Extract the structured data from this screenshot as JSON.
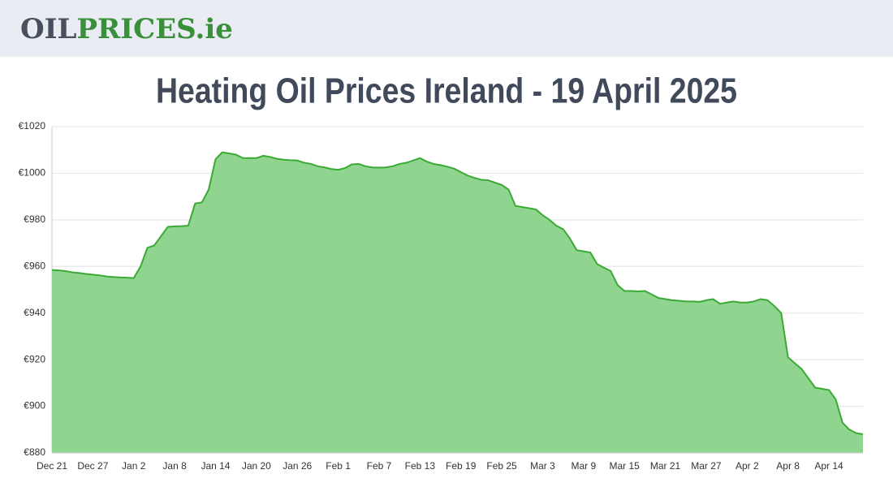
{
  "header": {
    "logo_part1": "OIL",
    "logo_part2": "PRICES.ie"
  },
  "chart_data": {
    "type": "area",
    "title": "Heating Oil Prices Ireland - 19 April 2025",
    "categories": [
      "Dec 21",
      null,
      null,
      null,
      null,
      null,
      "Dec 27",
      null,
      null,
      null,
      null,
      null,
      "Jan 2",
      null,
      null,
      null,
      null,
      null,
      "Jan 8",
      null,
      null,
      null,
      null,
      null,
      "Jan 14",
      null,
      null,
      null,
      null,
      null,
      "Jan 20",
      null,
      null,
      null,
      null,
      null,
      "Jan 26",
      null,
      null,
      null,
      null,
      null,
      "Feb 1",
      null,
      null,
      null,
      null,
      null,
      "Feb 7",
      null,
      null,
      null,
      null,
      null,
      "Feb 13",
      null,
      null,
      null,
      null,
      null,
      "Feb 19",
      null,
      null,
      null,
      null,
      null,
      "Feb 25",
      null,
      null,
      null,
      null,
      null,
      "Mar 3",
      null,
      null,
      null,
      null,
      null,
      "Mar 9",
      null,
      null,
      null,
      null,
      null,
      "Mar 15",
      null,
      null,
      null,
      null,
      null,
      "Mar 21",
      null,
      null,
      null,
      null,
      null,
      "Mar 27",
      null,
      null,
      null,
      null,
      null,
      "Apr 2",
      null,
      null,
      null,
      null,
      null,
      "Apr 8",
      null,
      null,
      null,
      null,
      null,
      "Apr 14",
      null,
      null,
      null,
      null,
      null
    ],
    "values": [
      958.5,
      958.3,
      958,
      957.5,
      957.2,
      956.8,
      956.5,
      956.2,
      955.7,
      955.5,
      955.3,
      955.2,
      955,
      960,
      968,
      969,
      973,
      977,
      977.2,
      977.3,
      977.5,
      987,
      987.5,
      993,
      1006,
      1009,
      1008.5,
      1008,
      1006.5,
      1006.5,
      1006.5,
      1007.5,
      1007,
      1006.2,
      1005.8,
      1005.6,
      1005.5,
      1004.5,
      1004,
      1003,
      1002.5,
      1001.8,
      1001.5,
      1002.2,
      1003.8,
      1004,
      1003,
      1002.5,
      1002.4,
      1002.5,
      1003,
      1004,
      1004.5,
      1005.5,
      1006.5,
      1005,
      1004,
      1003.5,
      1002.8,
      1002,
      1000.5,
      999,
      998,
      997.2,
      997,
      996,
      995,
      993,
      986,
      985.5,
      985,
      984.5,
      982,
      980,
      977.5,
      976,
      972,
      967,
      966.5,
      966,
      961,
      959.5,
      958,
      952,
      949.5,
      949.5,
      949.3,
      949.5,
      948,
      946.5,
      946,
      945.5,
      945.3,
      945,
      945,
      944.8,
      945.5,
      946,
      944,
      944.5,
      945,
      944.5,
      944.5,
      945,
      946,
      945.5,
      943,
      940,
      921,
      918.5,
      916,
      912,
      908,
      907.5,
      907,
      903,
      893,
      890,
      888.5,
      888
    ],
    "color": "#3aaa35",
    "fill_color": "#8fd58f",
    "ylim": [
      880,
      1020
    ],
    "yticks": [
      {
        "value": 880,
        "label": "€880"
      },
      {
        "value": 900,
        "label": "€900"
      },
      {
        "value": 920,
        "label": "€920"
      },
      {
        "value": 940,
        "label": "€940"
      },
      {
        "value": 960,
        "label": "€960"
      },
      {
        "value": 980,
        "label": "€980"
      },
      {
        "value": 1000,
        "label": "€1000"
      },
      {
        "value": 1020,
        "label": "€1020"
      }
    ],
    "grid": true
  }
}
